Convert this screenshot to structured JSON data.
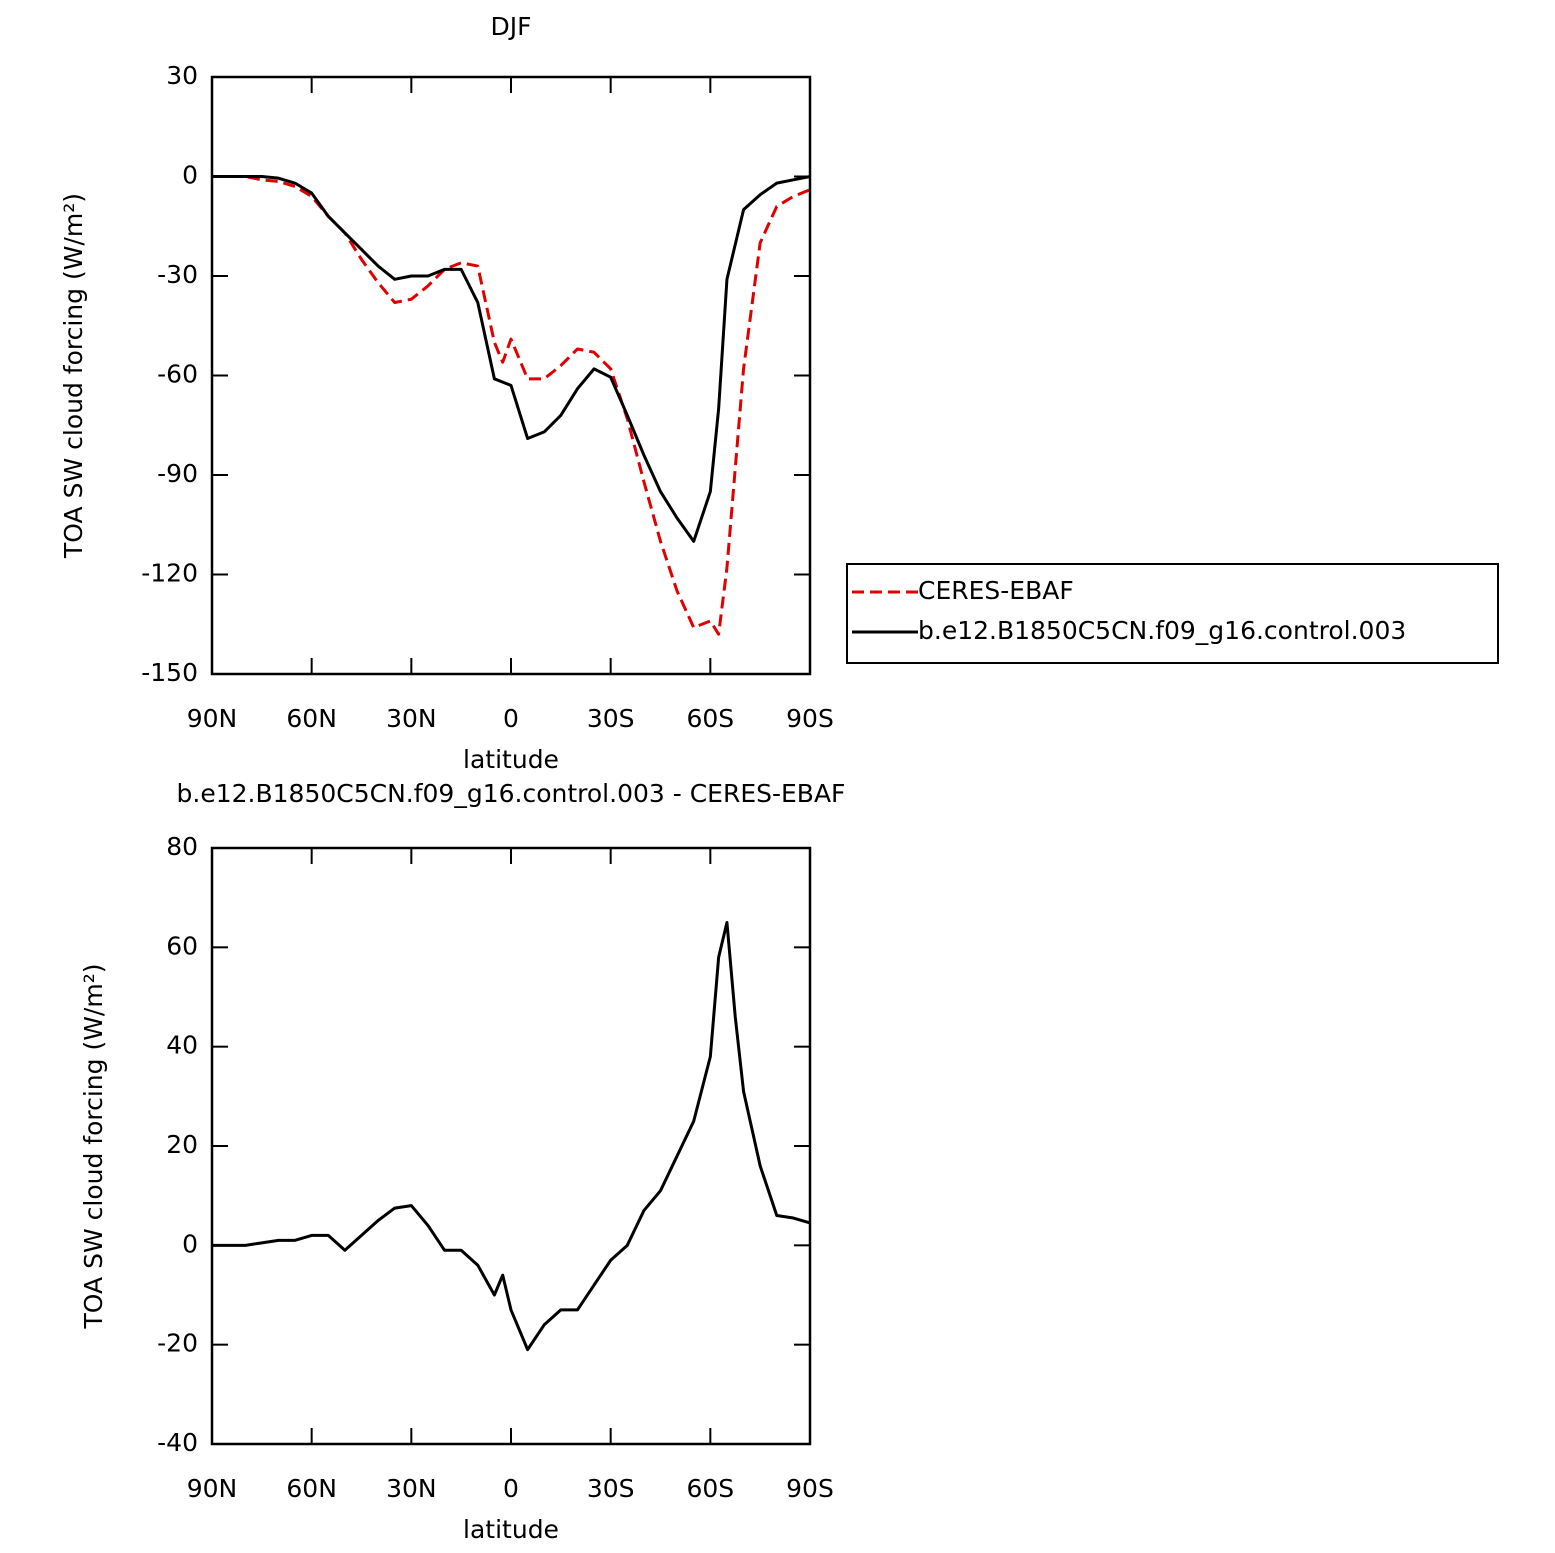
{
  "chart_data": [
    {
      "type": "line",
      "title": "DJF",
      "xlabel": "latitude",
      "ylabel": "TOA SW cloud forcing (W/m²)",
      "x": [
        90,
        85,
        80,
        75,
        70,
        65,
        60,
        55,
        50,
        45,
        40,
        35,
        30,
        25,
        20,
        15,
        10,
        5,
        2.5,
        0,
        -5,
        -10,
        -15,
        -20,
        -25,
        -30,
        -35,
        -40,
        -45,
        -50,
        -55,
        -60,
        -62.5,
        -65,
        -70,
        -75,
        -80,
        -85,
        -90
      ],
      "series": [
        {
          "name": "CERES-EBAF",
          "color": "#e00000",
          "dash": true,
          "values": [
            0,
            0,
            0,
            -1,
            -1.5,
            -3,
            -6,
            -12,
            -17,
            -25,
            -32,
            -38,
            -37,
            -33,
            -28,
            -26,
            -27,
            -50,
            -56,
            -49,
            -61,
            -61,
            -57,
            -52,
            -53,
            -58,
            -73,
            -92,
            -110,
            -125,
            -136,
            -134,
            -138,
            -118,
            -58,
            -20,
            -9,
            -6,
            -4
          ]
        },
        {
          "name": "b.e12.B1850C5CN.f09_g16.control.003",
          "color": "#000000",
          "dash": false,
          "values": [
            0,
            0,
            0,
            0,
            -0.5,
            -2,
            -5,
            -12,
            -17,
            -22,
            -27,
            -31,
            -30,
            -30,
            -28,
            -28,
            -38,
            -61,
            -62,
            -63,
            -79,
            -77,
            -72,
            -64,
            -58,
            -60.5,
            -72,
            -84,
            -95,
            -103,
            -110,
            -95,
            -70,
            -31,
            -10,
            -5.5,
            -2,
            -1,
            0
          ]
        }
      ],
      "xlim": [
        90,
        -90
      ],
      "xticks": [
        {
          "value": 90,
          "label": "90N"
        },
        {
          "value": 60,
          "label": "60N"
        },
        {
          "value": 30,
          "label": "30N"
        },
        0,
        {
          "value": -30,
          "label": "30S"
        },
        {
          "value": -60,
          "label": "60S"
        },
        {
          "value": -90,
          "label": "90S"
        }
      ],
      "ylim": [
        -150,
        30
      ],
      "yticks": [
        -150,
        -120,
        -90,
        -60,
        -30,
        0,
        30
      ],
      "legend": "right"
    },
    {
      "type": "line",
      "title": "b.e12.B1850C5CN.f09_g16.control.003 - CERES-EBAF",
      "xlabel": "latitude",
      "ylabel": "TOA SW cloud forcing (W/m²)",
      "x": [
        90,
        85,
        80,
        75,
        70,
        65,
        60,
        55,
        50,
        45,
        40,
        35,
        30,
        25,
        20,
        15,
        10,
        5,
        2.5,
        0,
        -5,
        -10,
        -15,
        -20,
        -25,
        -30,
        -35,
        -40,
        -45,
        -50,
        -55,
        -60,
        -62.5,
        -65,
        -67.5,
        -70,
        -75,
        -80,
        -85,
        -90
      ],
      "series": [
        {
          "name": null,
          "color": "#000000",
          "dash": false,
          "values": [
            0,
            0,
            0,
            0.5,
            1,
            1,
            2,
            2,
            -1,
            2,
            5,
            7.5,
            8,
            4,
            -1,
            -1,
            -4,
            -10,
            -6,
            -13,
            -21,
            -16,
            -13,
            -13,
            -8,
            -3,
            0,
            7,
            11,
            18,
            25,
            38,
            58,
            65,
            46,
            31,
            16,
            6,
            5.5,
            4.5
          ]
        }
      ],
      "xlim": [
        90,
        -90
      ],
      "xticks": [
        {
          "value": 90,
          "label": "90N"
        },
        {
          "value": 60,
          "label": "60N"
        },
        {
          "value": 30,
          "label": "30N"
        },
        0,
        {
          "value": -30,
          "label": "30S"
        },
        {
          "value": -60,
          "label": "60S"
        },
        {
          "value": -90,
          "label": "90S"
        }
      ],
      "ylim": [
        -40,
        80
      ],
      "yticks": [
        -40,
        -20,
        0,
        20,
        40,
        60,
        80
      ]
    }
  ]
}
